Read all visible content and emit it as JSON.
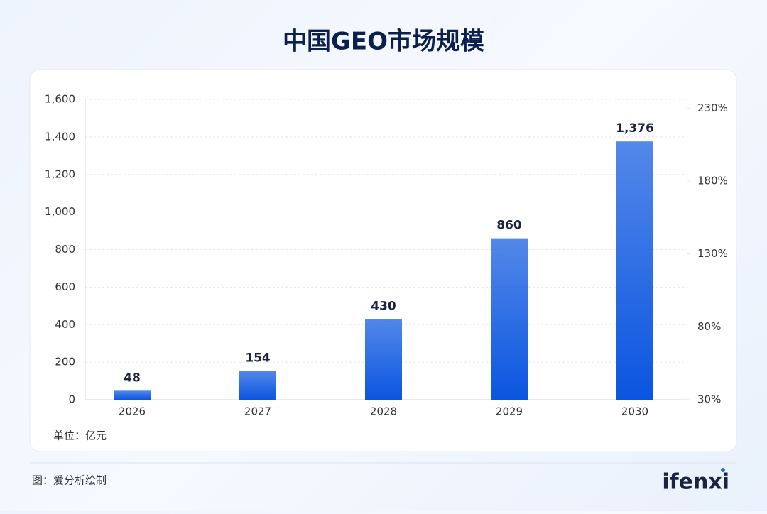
{
  "chart_data": {
    "type": "bar",
    "title": "中国GEO市场规模",
    "categories": [
      "2026",
      "2027",
      "2028",
      "2029",
      "2030"
    ],
    "values": [
      48,
      154,
      430,
      860,
      1376
    ],
    "value_labels": [
      "48",
      "154",
      "430",
      "860",
      "1,376"
    ],
    "color": "#0a55e0",
    "ylim": [
      0,
      1600
    ],
    "yticks": [
      0,
      200,
      400,
      600,
      800,
      {
        "value": 1000,
        "label": "1,000"
      },
      {
        "value": 1200,
        "label": "1,200"
      },
      {
        "value": 1400,
        "label": "1,400"
      },
      {
        "value": 1600,
        "label": "1,600"
      }
    ],
    "y2lim": [
      30,
      236
    ],
    "y2ticks": [
      {
        "value": 30,
        "label": "30%"
      },
      {
        "value": 80,
        "label": "80%"
      },
      {
        "value": 130,
        "label": "130%"
      },
      {
        "value": 180,
        "label": "180%"
      },
      {
        "value": 230,
        "label": "230%"
      }
    ],
    "grid": true,
    "unit_label": "单位：亿元"
  },
  "source": "图：爱分析绘制",
  "logo": "ifenxi"
}
